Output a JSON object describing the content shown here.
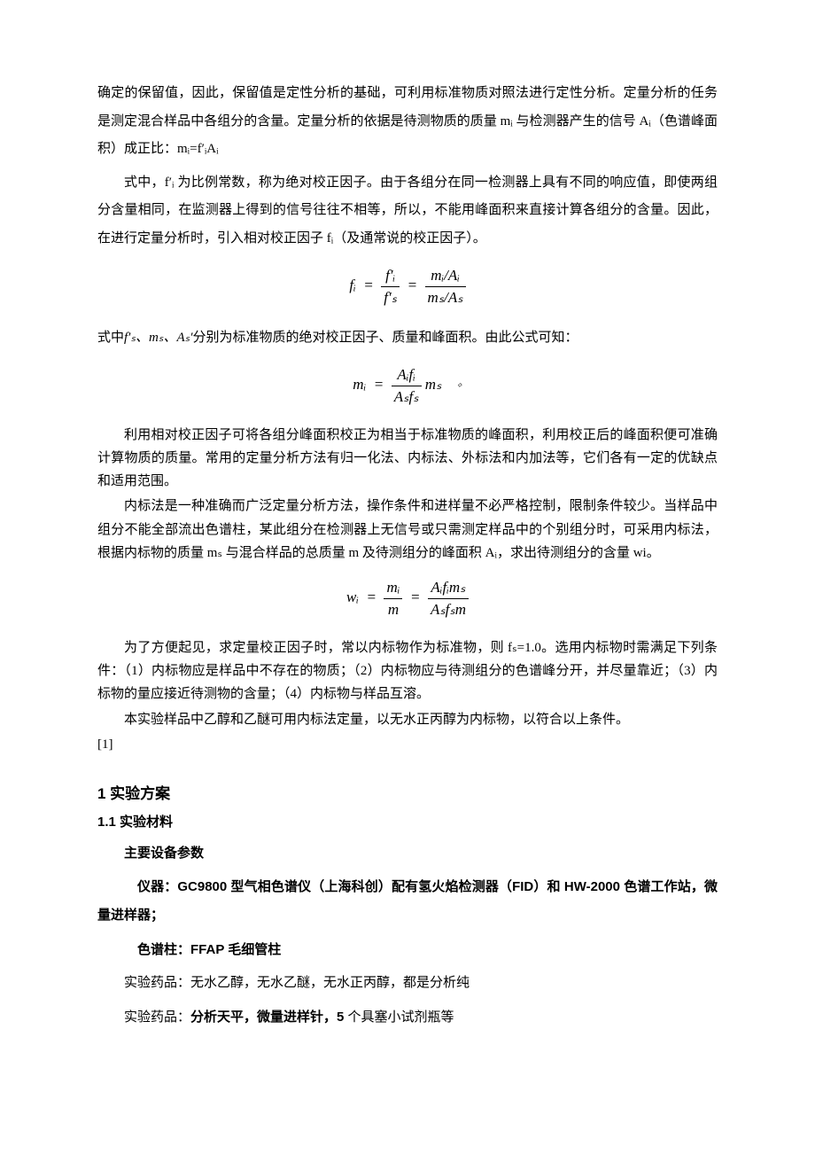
{
  "colors": {
    "text": "#000000",
    "background": "#ffffff"
  },
  "typography": {
    "body_fontsize_pt": 11,
    "body_family": "SimSun",
    "heading_family": "SimHei",
    "line_height_body": 2.1,
    "line_height_dense": 1.75
  },
  "p1": "确定的保留值，因此，保留值是定性分析的基础，可利用标准物质对照法进行定性分析。定量分析的任务是测定混合样品中各组分的含量。定量分析的依据是待测物质的质量 mᵢ 与检测器产生的信号 Aᵢ（色谱峰面积）成正比：mᵢ=f′ᵢAᵢ",
  "p2": "式中，f′ᵢ 为比例常数，称为绝对校正因子。由于各组分在同一检测器上具有不同的响应值，即使两组分含量相同，在监测器上得到的信号往往不相等，所以，不能用峰面积来直接计算各组分的含量。因此，在进行定量分析时，引入相对校正因子 fᵢ（及通常说的校正因子）。",
  "formula1": {
    "lhs": "fᵢ",
    "frac1_num": "f′ᵢ",
    "frac1_den": "f′ₛ",
    "frac2_num": "mᵢ/Aᵢ",
    "frac2_den": "mₛ/Aₛ"
  },
  "p3_symbols": "f′ₛ、mₛ、Aₛ′",
  "p3_rest": "分别为标准物质的绝对校正因子、质量和峰面积。由此公式可知：",
  "p3_prefix": "式中",
  "formula2": {
    "lhs": "mᵢ",
    "frac_num": "Aᵢfᵢ",
    "frac_den": "Aₛfₛ",
    "tail": " mₛ"
  },
  "p4": "利用相对校正因子可将各组分峰面积校正为相当于标准物质的峰面积，利用校正后的峰面积便可准确计算物质的质量。常用的定量分析方法有归一化法、内标法、外标法和内加法等，它们各有一定的优缺点和适用范围。",
  "p5": "内标法是一种准确而广泛定量分析方法，操作条件和进样量不必严格控制，限制条件较少。当样品中组分不能全部流出色谱柱，某此组分在检测器上无信号或只需测定样品中的个别组分时，可采用内标法，根据内标物的质量 mₛ 与混合样品的总质量 m 及待测组分的峰面积 Aᵢ，求出待测组分的含量 wi。",
  "formula3": {
    "lhs": "wᵢ",
    "frac1_num": "mᵢ",
    "frac1_den": "m",
    "frac2_num": "Aᵢfᵢmₛ",
    "frac2_den": "Aₛfₛm"
  },
  "p6": "为了方便起见，求定量校正因子时，常以内标物作为标准物，则 fₛ=1.0。选用内标物时需满足下列条件：（1）内标物应是样品中不存在的物质；（2）内标物应与待测组分的色谱峰分开，并尽量靠近；（3）内标物的量应接近待测物的含量；（4）内标物与样品互溶。",
  "p7": "本实验样品中乙醇和乙醚可用内标法定量，以无水正丙醇为内标物，以符合以上条件。",
  "ref": "[1]",
  "h1": "1 实验方案",
  "h2": "1.1 实验材料",
  "s1_label": "主要设备参数",
  "s2_prefix": "仪器：",
  "s2_text": "GC9800 型气相色谱仪（上海科创）配有氢火焰检测器（FID）和 HW-2000 色谱工作站，微量进样器；",
  "s3_prefix": "色谱柱：",
  "s3_text": "FFAP 毛细管柱",
  "s4_prefix": "实验药品：",
  "s4_text": "无水乙醇，无水乙醚，无水正丙醇，都是分析纯",
  "s5_prefix": "实验药品：",
  "s5_text": "分析天平，微量进样针，5 个具塞小试剂瓶等"
}
